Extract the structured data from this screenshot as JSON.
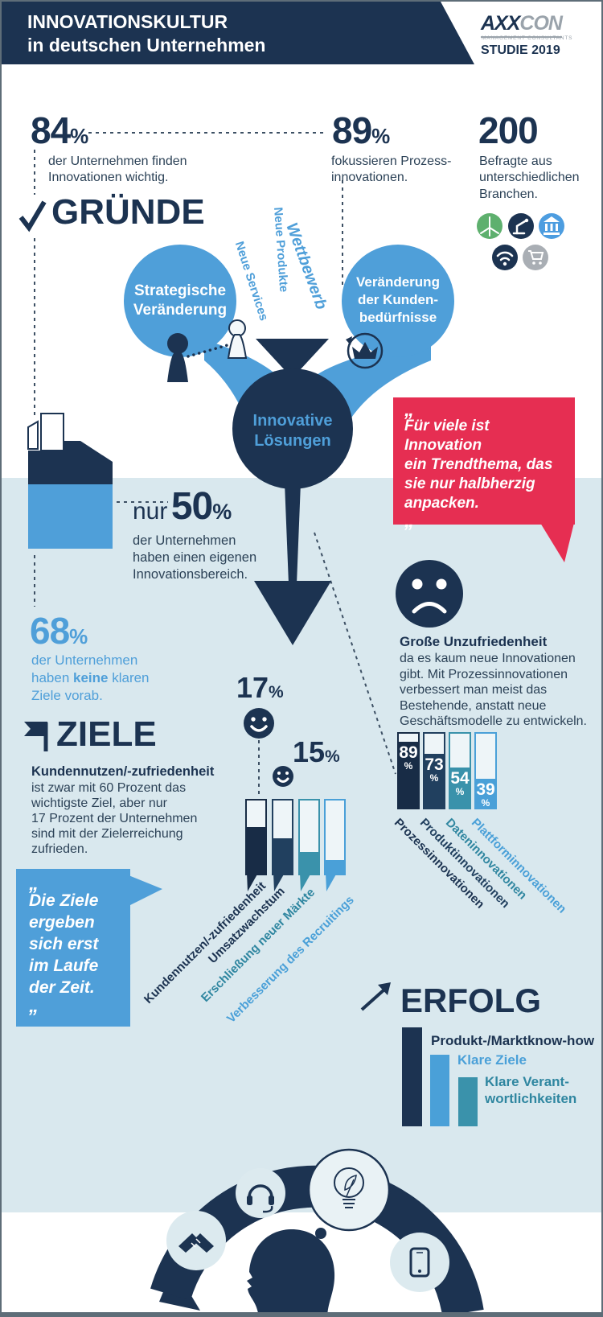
{
  "colors": {
    "navy": "#1c3351",
    "dark_bar": "#182c46",
    "mid_bar": "#21405f",
    "blue": "#4f9fd9",
    "light_blue_bar": "#4aa0d8",
    "teal": "#3a92ab",
    "band": "#d9e8ee",
    "red": "#e62e52",
    "gray": "#a9aeb4",
    "green": "#5eb06e",
    "bank_blue": "#4d9de0"
  },
  "header": {
    "title": "INNOVATIONSKULTUR\nin deutschen Unternehmen",
    "logo_axx": "AXX",
    "logo_con": "CON",
    "logo_sub": "MANAGEMENT CONSULTANTS",
    "study": "STUDIE 2019"
  },
  "stats": [
    {
      "value": "84",
      "unit": "%",
      "desc": "der Unternehmen finden\nInnovationen wichtig."
    },
    {
      "value": "89",
      "unit": "%",
      "desc": "fokussieren Prozess-\ninnovationen."
    },
    {
      "value": "200",
      "unit": "",
      "desc": "Befragte aus\nunterschiedlichen\nBranchen."
    }
  ],
  "industries": [
    {
      "icon": "wind-turbine-icon",
      "color": "#5eb06e"
    },
    {
      "icon": "robot-arm-icon",
      "color": "#1c3351"
    },
    {
      "icon": "bank-icon",
      "color": "#4d9de0"
    },
    {
      "icon": "wifi-icon",
      "color": "#1c3351"
    },
    {
      "icon": "shopping-cart-icon",
      "color": "#a9aeb4"
    }
  ],
  "gruende": {
    "check": "✓",
    "heading": "GRÜNDE",
    "bubble_left": "Strategische\nVeränderung",
    "bubble_right": "Veränderung\nder Kunden-\nbedürfnisse",
    "streams": [
      "Neue Services",
      "Neue Produkte",
      "Wettbewerb"
    ],
    "funnel_label": "Innovative\nLösungen"
  },
  "fifty": {
    "prefix": "nur",
    "value": "50",
    "unit": "%",
    "desc": "der Unternehmen\nhaben einen eigenen\nInnovationsbereich."
  },
  "quote_red": {
    "open": "„",
    "text": "Für viele ist Innovation\nein Trendthema, das\nsie nur halbherzig\nanpacken.",
    "close": "„"
  },
  "sixtyeight": {
    "value": "68",
    "unit": "%",
    "desc_pre": "der Unternehmen\nhaben ",
    "desc_bold": "keine",
    "desc_post": " klaren\nZiele vorab."
  },
  "ziele": {
    "heading": "ZIELE",
    "lead": "Kundennutzen/-zufriedenheit",
    "body": "ist zwar mit 60 Prozent das\nwichtigste Ziel, aber nur\n17 Prozent der Unternehmen\nsind mit der Zielerreichung\nzufrieden."
  },
  "quote_blue": {
    "open": "„",
    "text": "Die Ziele\nergeben\nsich erst\nim Laufe\nder Zeit.",
    "close": "„"
  },
  "dissatisfaction": {
    "lead": "Große Unzufriedenheit",
    "body": "da es kaum neue Innovationen\ngibt. Mit Prozessinnovationen\nverbessert man meist das\nBestehende, anstatt neue\nGeschäftsmodelle zu entwickeln."
  },
  "erfolg": {
    "heading": "ERFOLG"
  },
  "chart_data": [
    {
      "id": "goals",
      "type": "bar",
      "title": "Ziele von Innovationen (Füllstand = Bedeutung, geschätzt)",
      "categories": [
        "Kundennutzen/-zufriedenheit",
        "Umsatzwachstum",
        "Erschließung neuer Märkte",
        "Verbesserung des Recruitings"
      ],
      "values": [
        64,
        48,
        30,
        19
      ],
      "colors": [
        "#182c46",
        "#21405f",
        "#3a92ab",
        "#4aa0d8"
      ],
      "annotations": [
        {
          "label": "17",
          "unit": "%",
          "category": "Kundennutzen/-zufriedenheit"
        },
        {
          "label": "15",
          "unit": "%",
          "category": "Umsatzwachstum"
        }
      ]
    },
    {
      "id": "innovations",
      "type": "bar",
      "unit": "%",
      "categories": [
        "Prozessinnovationen",
        "Produktinnovationen",
        "Dateninnovationen",
        "Plattforminnovationen"
      ],
      "values": [
        89,
        73,
        54,
        39
      ],
      "colors": [
        "#182c46",
        "#21405f",
        "#3a92ab",
        "#4aa0d8"
      ]
    },
    {
      "id": "erfolg",
      "type": "bar",
      "categories": [
        "Produkt-/Marktknow-how",
        "Klare Ziele",
        "Klare Verant-\nwortlichkeiten"
      ],
      "values": [
        100,
        72,
        50
      ],
      "colors": [
        "#1c3351",
        "#4aa0d8",
        "#3a92ab"
      ]
    }
  ]
}
